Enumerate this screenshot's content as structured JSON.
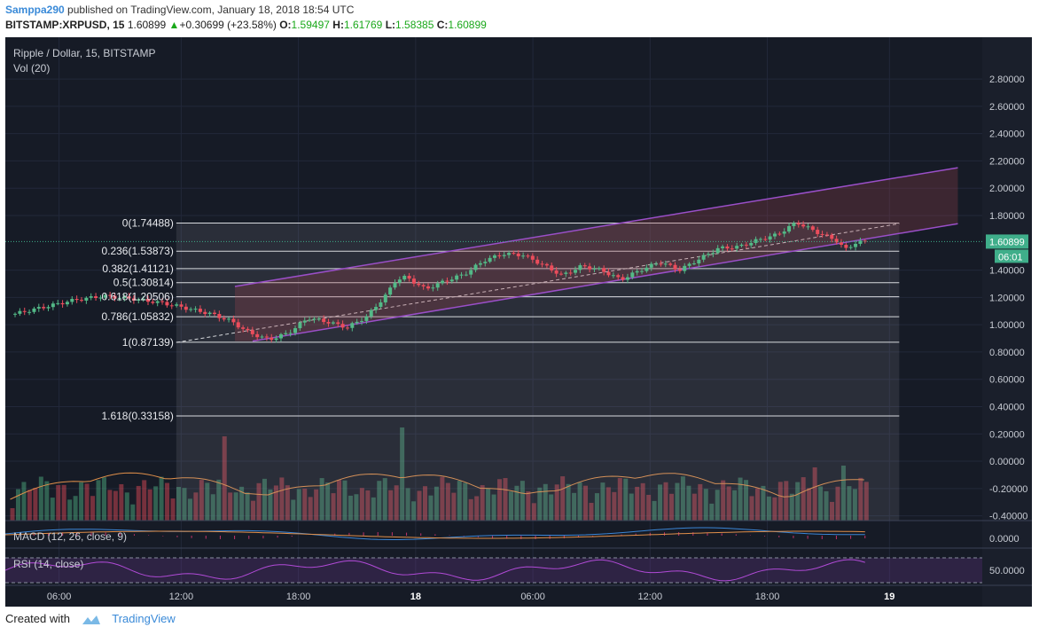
{
  "header": {
    "user": "Samppa290",
    "published": "published on TradingView.com, January 18, 2018 18:54 UTC",
    "symbol": "BITSTAMP:XRPUSD, 15",
    "last": "1.60899",
    "change": "+0.30699 (+23.58%)",
    "ohlc": [
      {
        "label": "O:",
        "value": "1.59497"
      },
      {
        "label": "H:",
        "value": "1.61769"
      },
      {
        "label": "L:",
        "value": "1.58385"
      },
      {
        "label": "C:",
        "value": "1.60899"
      }
    ]
  },
  "chart_data": {
    "type": "candlestick",
    "title": "Ripple / Dollar, 15, BITSTAMP",
    "volume_label": "Vol (20)",
    "ylim": [
      -0.5,
      2.95
    ],
    "y_ticks": [
      "2.80000",
      "2.60000",
      "2.40000",
      "2.20000",
      "2.00000",
      "1.80000",
      "1.40000",
      "1.20000",
      "1.00000",
      "0.80000",
      "0.60000",
      "0.40000",
      "0.20000",
      "0.00000",
      "-0.20000",
      "-0.40000"
    ],
    "last_price": "1.60899",
    "countdown": "06:01",
    "x_ticks": [
      "06:00",
      "12:00",
      "18:00",
      "18",
      "06:00",
      "12:00",
      "18:00",
      "19"
    ],
    "fib_levels": [
      {
        "label": "0(1.74488)",
        "value": 1.74488
      },
      {
        "label": "0.236(1.53873)",
        "value": 1.53873
      },
      {
        "label": "0.382(1.41121)",
        "value": 1.41121
      },
      {
        "label": "0.5(1.30814)",
        "value": 1.30814
      },
      {
        "label": "0.618(1.20506)",
        "value": 1.20506
      },
      {
        "label": "0.786(1.05832)",
        "value": 1.05832
      },
      {
        "label": "1(0.87139)",
        "value": 0.87139
      },
      {
        "label": "1.618(0.33158)",
        "value": 0.33158
      }
    ],
    "price_path": [
      [
        0.01,
        1.08
      ],
      [
        0.04,
        1.13
      ],
      [
        0.07,
        1.18
      ],
      [
        0.1,
        1.21
      ],
      [
        0.13,
        1.19
      ],
      [
        0.16,
        1.16
      ],
      [
        0.18,
        1.13
      ],
      [
        0.21,
        1.08
      ],
      [
        0.23,
        1.03
      ],
      [
        0.25,
        0.94
      ],
      [
        0.27,
        0.89
      ],
      [
        0.29,
        0.94
      ],
      [
        0.31,
        1.05
      ],
      [
        0.33,
        1.02
      ],
      [
        0.35,
        0.98
      ],
      [
        0.37,
        1.06
      ],
      [
        0.39,
        1.22
      ],
      [
        0.4,
        1.33
      ],
      [
        0.41,
        1.35
      ],
      [
        0.43,
        1.26
      ],
      [
        0.45,
        1.32
      ],
      [
        0.47,
        1.37
      ],
      [
        0.49,
        1.47
      ],
      [
        0.51,
        1.52
      ],
      [
        0.53,
        1.51
      ],
      [
        0.55,
        1.44
      ],
      [
        0.57,
        1.36
      ],
      [
        0.59,
        1.43
      ],
      [
        0.61,
        1.4
      ],
      [
        0.63,
        1.33
      ],
      [
        0.65,
        1.4
      ],
      [
        0.67,
        1.46
      ],
      [
        0.69,
        1.4
      ],
      [
        0.71,
        1.48
      ],
      [
        0.73,
        1.56
      ],
      [
        0.75,
        1.57
      ],
      [
        0.77,
        1.62
      ],
      [
        0.79,
        1.66
      ],
      [
        0.81,
        1.75
      ],
      [
        0.83,
        1.68
      ],
      [
        0.85,
        1.62
      ],
      [
        0.86,
        1.55
      ],
      [
        0.87,
        1.6
      ],
      [
        0.88,
        1.61
      ]
    ],
    "macd": {
      "label": "MACD (12, 26, close, 9)",
      "tick": "0.0000"
    },
    "rsi": {
      "label": "RSI (14, close)",
      "tick": "50.0000"
    }
  },
  "footer": {
    "created": "Created with",
    "brand": "TradingView"
  }
}
